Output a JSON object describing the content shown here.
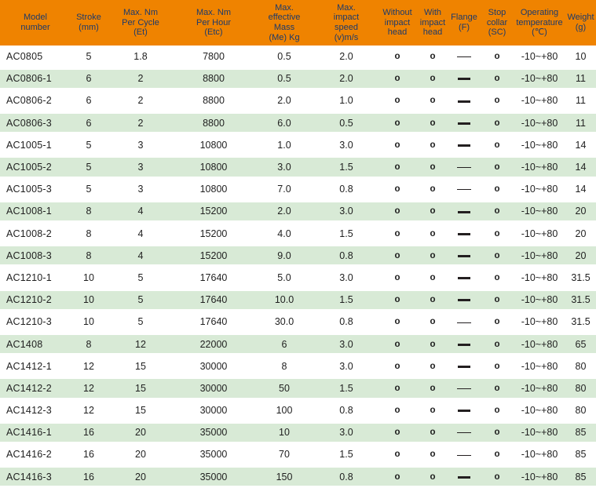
{
  "colors": {
    "header_bg": "#EF8300",
    "header_text": "#1C3A6B",
    "row_alt_bg": "#D8EAD6",
    "cell_text": "#1F1F1F",
    "dash": "#231F20"
  },
  "symbols": {
    "circle_mark": "o",
    "dash_thin": "—",
    "dash_bold": "—"
  },
  "table": {
    "columns": [
      {
        "key": "model",
        "label": "Model\nnumber"
      },
      {
        "key": "stroke_mm",
        "label": "Stroke\n(mm)"
      },
      {
        "key": "max_nm_per_cycle",
        "label": "Max. Nm\nPer Cycle\n(Et)"
      },
      {
        "key": "max_nm_per_hour",
        "label": "Max. Nm\nPer Hour\n(Etc)"
      },
      {
        "key": "max_effective_mass",
        "label": "Max.\neffective\nMass\n(Me) Kg"
      },
      {
        "key": "max_impact_speed",
        "label": "Max.\nimpact\nspeed\n(v)m/s"
      },
      {
        "key": "without_impact_head",
        "label": "Without\nimpact\nhead"
      },
      {
        "key": "with_impact_head",
        "label": "With\nimpact\nhead"
      },
      {
        "key": "flange",
        "label": "Flange\n(F)"
      },
      {
        "key": "stop_collar",
        "label": "Stop\ncollar\n(SC)"
      },
      {
        "key": "operating_temperature",
        "label": "Operating\ntemperature\n(℃)"
      },
      {
        "key": "weight_g",
        "label": "Weight\n(g)"
      }
    ],
    "rows": [
      {
        "model": "AC0805",
        "stroke_mm": "5",
        "max_nm_per_cycle": "1.8",
        "max_nm_per_hour": "7800",
        "max_effective_mass": "0.5",
        "max_impact_speed": "2.0",
        "without_impact_head": "o",
        "with_impact_head": "o",
        "flange": "dash-thin",
        "stop_collar": "o",
        "operating_temperature": "-10~+80",
        "weight_g": "10"
      },
      {
        "model": "AC0806-1",
        "stroke_mm": "6",
        "max_nm_per_cycle": "2",
        "max_nm_per_hour": "8800",
        "max_effective_mass": "0.5",
        "max_impact_speed": "2.0",
        "without_impact_head": "o",
        "with_impact_head": "o",
        "flange": "dash-bold",
        "stop_collar": "o",
        "operating_temperature": "-10~+80",
        "weight_g": "11"
      },
      {
        "model": "AC0806-2",
        "stroke_mm": "6",
        "max_nm_per_cycle": "2",
        "max_nm_per_hour": "8800",
        "max_effective_mass": "2.0",
        "max_impact_speed": "1.0",
        "without_impact_head": "o",
        "with_impact_head": "o",
        "flange": "dash-bold",
        "stop_collar": "o",
        "operating_temperature": "-10~+80",
        "weight_g": "11"
      },
      {
        "model": "AC0806-3",
        "stroke_mm": "6",
        "max_nm_per_cycle": "2",
        "max_nm_per_hour": "8800",
        "max_effective_mass": "6.0",
        "max_impact_speed": "0.5",
        "without_impact_head": "o",
        "with_impact_head": "o",
        "flange": "dash-bold",
        "stop_collar": "o",
        "operating_temperature": "-10~+80",
        "weight_g": "11"
      },
      {
        "model": "AC1005-1",
        "stroke_mm": "5",
        "max_nm_per_cycle": "3",
        "max_nm_per_hour": "10800",
        "max_effective_mass": "1.0",
        "max_impact_speed": "3.0",
        "without_impact_head": "o",
        "with_impact_head": "o",
        "flange": "dash-bold",
        "stop_collar": "o",
        "operating_temperature": "-10~+80",
        "weight_g": "14"
      },
      {
        "model": "AC1005-2",
        "stroke_mm": "5",
        "max_nm_per_cycle": "3",
        "max_nm_per_hour": "10800",
        "max_effective_mass": "3.0",
        "max_impact_speed": "1.5",
        "without_impact_head": "o",
        "with_impact_head": "o",
        "flange": "dash-thin",
        "stop_collar": "o",
        "operating_temperature": "-10~+80",
        "weight_g": "14"
      },
      {
        "model": "AC1005-3",
        "stroke_mm": "5",
        "max_nm_per_cycle": "3",
        "max_nm_per_hour": "10800",
        "max_effective_mass": "7.0",
        "max_impact_speed": "0.8",
        "without_impact_head": "o",
        "with_impact_head": "o",
        "flange": "dash-thin",
        "stop_collar": "o",
        "operating_temperature": "-10~+80",
        "weight_g": "14"
      },
      {
        "model": "AC1008-1",
        "stroke_mm": "8",
        "max_nm_per_cycle": "4",
        "max_nm_per_hour": "15200",
        "max_effective_mass": "2.0",
        "max_impact_speed": "3.0",
        "without_impact_head": "o",
        "with_impact_head": "o",
        "flange": "dash-bold",
        "stop_collar": "o",
        "operating_temperature": "-10~+80",
        "weight_g": "20"
      },
      {
        "model": "AC1008-2",
        "stroke_mm": "8",
        "max_nm_per_cycle": "4",
        "max_nm_per_hour": "15200",
        "max_effective_mass": "4.0",
        "max_impact_speed": "1.5",
        "without_impact_head": "o",
        "with_impact_head": "o",
        "flange": "dash-bold",
        "stop_collar": "o",
        "operating_temperature": "-10~+80",
        "weight_g": "20"
      },
      {
        "model": "AC1008-3",
        "stroke_mm": "8",
        "max_nm_per_cycle": "4",
        "max_nm_per_hour": "15200",
        "max_effective_mass": "9.0",
        "max_impact_speed": "0.8",
        "without_impact_head": "o",
        "with_impact_head": "o",
        "flange": "dash-bold",
        "stop_collar": "o",
        "operating_temperature": "-10~+80",
        "weight_g": "20"
      },
      {
        "model": "AC1210-1",
        "stroke_mm": "10",
        "max_nm_per_cycle": "5",
        "max_nm_per_hour": "17640",
        "max_effective_mass": "5.0",
        "max_impact_speed": "3.0",
        "without_impact_head": "o",
        "with_impact_head": "o",
        "flange": "dash-bold",
        "stop_collar": "o",
        "operating_temperature": "-10~+80",
        "weight_g": "31.5"
      },
      {
        "model": "AC1210-2",
        "stroke_mm": "10",
        "max_nm_per_cycle": "5",
        "max_nm_per_hour": "17640",
        "max_effective_mass": "10.0",
        "max_impact_speed": "1.5",
        "without_impact_head": "o",
        "with_impact_head": "o",
        "flange": "dash-bold",
        "stop_collar": "o",
        "operating_temperature": "-10~+80",
        "weight_g": "31.5"
      },
      {
        "model": "AC1210-3",
        "stroke_mm": "10",
        "max_nm_per_cycle": "5",
        "max_nm_per_hour": "17640",
        "max_effective_mass": "30.0",
        "max_impact_speed": "0.8",
        "without_impact_head": "o",
        "with_impact_head": "o",
        "flange": "dash-thin",
        "stop_collar": "o",
        "operating_temperature": "-10~+80",
        "weight_g": "31.5"
      },
      {
        "model": "AC1408",
        "stroke_mm": "8",
        "max_nm_per_cycle": "12",
        "max_nm_per_hour": "22000",
        "max_effective_mass": "6",
        "max_impact_speed": "3.0",
        "without_impact_head": "o",
        "with_impact_head": "o",
        "flange": "dash-bold",
        "stop_collar": "o",
        "operating_temperature": "-10~+80",
        "weight_g": "65"
      },
      {
        "model": "AC1412-1",
        "stroke_mm": "12",
        "max_nm_per_cycle": "15",
        "max_nm_per_hour": "30000",
        "max_effective_mass": "8",
        "max_impact_speed": "3.0",
        "without_impact_head": "o",
        "with_impact_head": "o",
        "flange": "dash-bold",
        "stop_collar": "o",
        "operating_temperature": "-10~+80",
        "weight_g": "80"
      },
      {
        "model": "AC1412-2",
        "stroke_mm": "12",
        "max_nm_per_cycle": "15",
        "max_nm_per_hour": "30000",
        "max_effective_mass": "50",
        "max_impact_speed": "1.5",
        "without_impact_head": "o",
        "with_impact_head": "o",
        "flange": "dash-thin",
        "stop_collar": "o",
        "operating_temperature": "-10~+80",
        "weight_g": "80"
      },
      {
        "model": "AC1412-3",
        "stroke_mm": "12",
        "max_nm_per_cycle": "15",
        "max_nm_per_hour": "30000",
        "max_effective_mass": "100",
        "max_impact_speed": "0.8",
        "without_impact_head": "o",
        "with_impact_head": "o",
        "flange": "dash-bold",
        "stop_collar": "o",
        "operating_temperature": "-10~+80",
        "weight_g": "80"
      },
      {
        "model": "AC1416-1",
        "stroke_mm": "16",
        "max_nm_per_cycle": "20",
        "max_nm_per_hour": "35000",
        "max_effective_mass": "10",
        "max_impact_speed": "3.0",
        "without_impact_head": "o",
        "with_impact_head": "o",
        "flange": "dash-thin",
        "stop_collar": "o",
        "operating_temperature": "-10~+80",
        "weight_g": "85"
      },
      {
        "model": "AC1416-2",
        "stroke_mm": "16",
        "max_nm_per_cycle": "20",
        "max_nm_per_hour": "35000",
        "max_effective_mass": "70",
        "max_impact_speed": "1.5",
        "without_impact_head": "o",
        "with_impact_head": "o",
        "flange": "dash-thin",
        "stop_collar": "o",
        "operating_temperature": "-10~+80",
        "weight_g": "85"
      },
      {
        "model": "AC1416-3",
        "stroke_mm": "16",
        "max_nm_per_cycle": "20",
        "max_nm_per_hour": "35000",
        "max_effective_mass": "150",
        "max_impact_speed": "0.8",
        "without_impact_head": "o",
        "with_impact_head": "o",
        "flange": "dash-bold",
        "stop_collar": "o",
        "operating_temperature": "-10~+80",
        "weight_g": "85"
      }
    ]
  }
}
